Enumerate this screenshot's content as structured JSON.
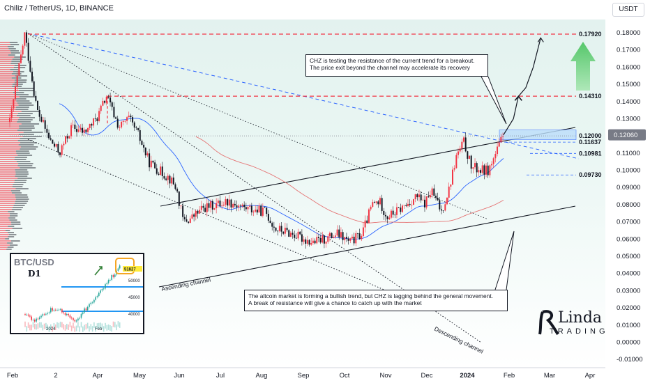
{
  "header": {
    "title": "Chiliz / TetherUS, 1D, BINANCE",
    "unit_button": "USDT"
  },
  "price_label": "0.12060",
  "colors": {
    "up": "#f23645",
    "down": "#131722",
    "ma_fast": "#2962ff",
    "ma_slow": "#e57373",
    "resistance": "#f23645",
    "arrow": "#5cc96b"
  },
  "annotations": {
    "top_note": "CHZ is testing the resistance of the current trend for a breakout.\nThe price exit beyond the channel may accelerate its recovery",
    "bottom_note": "The altcoin market is forming a bullish trend, but CHZ is lagging behind the general movement.\nA break of resistance will give a chance to catch up with the market",
    "ascending_channel": "Ascending channel",
    "descending_channel": "Descending channel"
  },
  "levels": [
    "0.17920",
    "0.14310",
    "0.12000",
    "0.11637",
    "0.10981",
    "0.09730"
  ],
  "inset": {
    "title": "BTC/USD",
    "timeframe": "D1",
    "price_tag": "51827",
    "y_ticks": [
      "50000",
      "45000",
      "40000"
    ],
    "x_ticks": [
      "2024",
      "Feb"
    ]
  },
  "logo": {
    "line1": "Linda",
    "line2": "TRADING"
  },
  "chart_data": {
    "type": "line",
    "title": "Chiliz / TetherUS, 1D, BINANCE",
    "x_ticks": [
      "Feb",
      "2",
      "Apr",
      "May",
      "Jun",
      "Jul",
      "Aug",
      "Sep",
      "Oct",
      "Nov",
      "Dec",
      "2024",
      "Feb",
      "Mar",
      "Apr"
    ],
    "y_ticks": [
      "0.18000",
      "0.17000",
      "0.16000",
      "0.15000",
      "0.14000",
      "0.13000",
      "0.12000",
      "0.11000",
      "0.10000",
      "0.09000",
      "0.08000",
      "0.07000",
      "0.06000",
      "0.05000",
      "0.04000",
      "0.03000",
      "0.02000",
      "0.01000",
      "0.00000",
      "-0.01000"
    ],
    "ylim": [
      -0.012,
      0.185
    ],
    "x_index_range": [
      0,
      440
    ],
    "series": [
      {
        "name": "",
        "points": [
          [
            0,
            0.128
          ],
          [
            12,
            0.1792
          ],
          [
            22,
            0.135
          ],
          [
            32,
            0.118
          ],
          [
            40,
            0.11
          ],
          [
            50,
            0.125
          ],
          [
            60,
            0.122
          ],
          [
            70,
            0.13
          ],
          [
            78,
            0.1431
          ],
          [
            88,
            0.125
          ],
          [
            96,
            0.13
          ],
          [
            104,
            0.12
          ],
          [
            112,
            0.105
          ],
          [
            120,
            0.1
          ],
          [
            128,
            0.096
          ],
          [
            134,
            0.09
          ],
          [
            140,
            0.07
          ],
          [
            146,
            0.072
          ],
          [
            156,
            0.078
          ],
          [
            166,
            0.08
          ],
          [
            176,
            0.082
          ],
          [
            186,
            0.079
          ],
          [
            196,
            0.077
          ],
          [
            206,
            0.076
          ],
          [
            214,
            0.066
          ],
          [
            224,
            0.064
          ],
          [
            234,
            0.061
          ],
          [
            244,
            0.058
          ],
          [
            254,
            0.06
          ],
          [
            264,
            0.063
          ],
          [
            274,
            0.058
          ],
          [
            284,
            0.063
          ],
          [
            292,
            0.08
          ],
          [
            298,
            0.082
          ],
          [
            304,
            0.073
          ],
          [
            312,
            0.076
          ],
          [
            320,
            0.08
          ],
          [
            328,
            0.085
          ],
          [
            334,
            0.08
          ],
          [
            340,
            0.088
          ],
          [
            348,
            0.076
          ],
          [
            354,
            0.089
          ],
          [
            360,
            0.108
          ],
          [
            366,
            0.1164
          ],
          [
            372,
            0.102
          ],
          [
            380,
            0.1
          ],
          [
            386,
            0.1
          ],
          [
            392,
            0.11
          ],
          [
            398,
            0.1206
          ]
        ]
      }
    ],
    "projection": [
      [
        398,
        0.1206
      ],
      [
        406,
        0.13
      ],
      [
        410,
        0.143
      ],
      [
        416,
        0.148
      ],
      [
        422,
        0.16
      ],
      [
        428,
        0.177
      ]
    ],
    "legend": "none",
    "grid": "off"
  }
}
